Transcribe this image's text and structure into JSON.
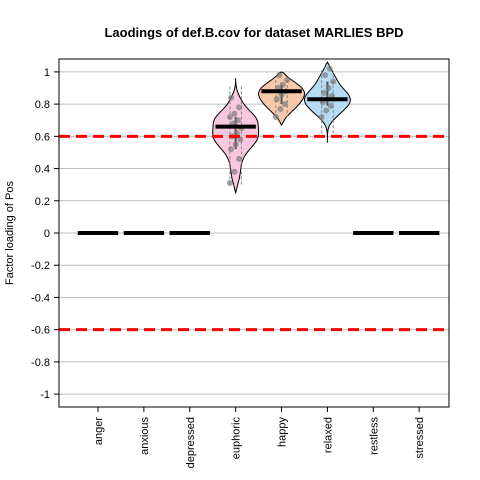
{
  "chart_data": {
    "type": "violin",
    "title": "Laodings of def.B.cov for dataset MARLIES BPD",
    "xlabel": "",
    "ylabel": "Factor loading of Pos",
    "ylim": [
      -1.08,
      1.08
    ],
    "yticks": [
      -1,
      -0.8,
      -0.6,
      -0.4,
      -0.2,
      0,
      0.2,
      0.4,
      0.6,
      0.8,
      1
    ],
    "ytick_labels": [
      "-1",
      "-0.8",
      "-0.6",
      "-0.4",
      "-0.2",
      "0",
      "0.2",
      "0.4",
      "0.6",
      "0.8",
      "1"
    ],
    "grid": true,
    "reference_lines": [
      0.6,
      -0.6
    ],
    "reference_line_color": "#ff0000",
    "categories": [
      "anger",
      "anxious",
      "depressed",
      "euphoric",
      "happy",
      "relaxed",
      "restless",
      "stressed"
    ],
    "medians": [
      0,
      0,
      0,
      0.66,
      0.88,
      0.83,
      0,
      0
    ],
    "violins": [
      {
        "category": "euphoric",
        "fill": "#f9c7de",
        "range": [
          0.25,
          0.96
        ],
        "points": [
          0.31,
          0.38,
          0.46,
          0.52,
          0.55,
          0.58,
          0.6,
          0.62,
          0.65,
          0.68,
          0.7,
          0.72,
          0.74,
          0.78,
          0.84
        ]
      },
      {
        "category": "happy",
        "fill": "#f7c9a8",
        "range": [
          0.67,
          1.0
        ],
        "points": [
          0.72,
          0.77,
          0.8,
          0.83,
          0.86,
          0.88,
          0.9,
          0.92,
          0.95,
          0.98
        ]
      },
      {
        "category": "relaxed",
        "fill": "#b6dcf3",
        "range": [
          0.56,
          1.06
        ],
        "points": [
          0.72,
          0.76,
          0.79,
          0.81,
          0.83,
          0.85,
          0.87,
          0.9,
          0.94,
          0.98,
          1.02
        ]
      }
    ]
  }
}
